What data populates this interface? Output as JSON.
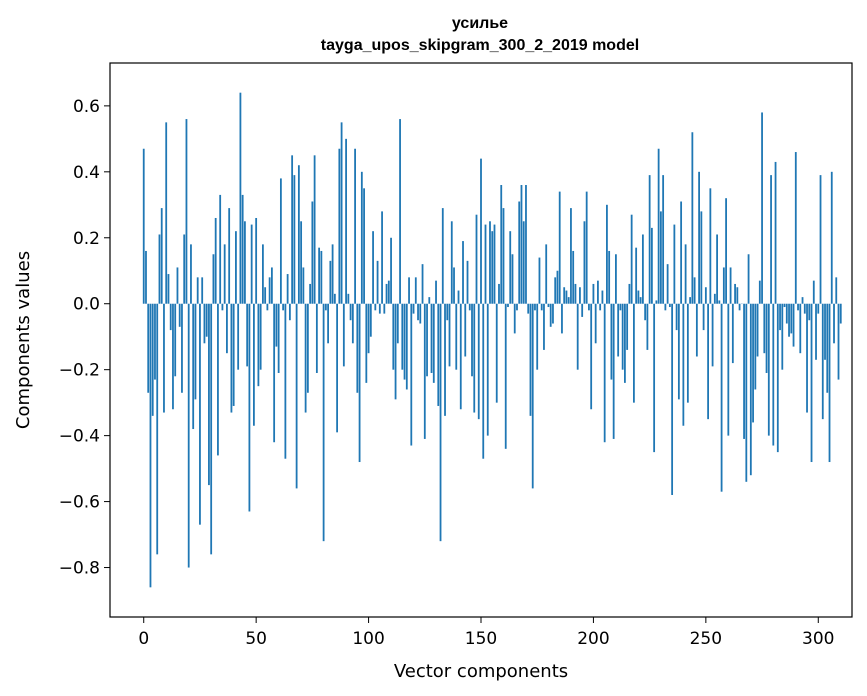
{
  "chart_data": {
    "type": "bar",
    "title": "усилье",
    "subtitle": "tayga_upos_skipgram_300_2_2019 model",
    "xlabel": "Vector components",
    "ylabel": "Components values",
    "xlim": [
      -15,
      315
    ],
    "ylim": [
      -0.95,
      0.73
    ],
    "xticks": [
      0,
      50,
      100,
      150,
      200,
      250,
      300
    ],
    "xtick_labels": [
      "0",
      "50",
      "100",
      "150",
      "200",
      "250",
      "300"
    ],
    "yticks": [
      -0.8,
      -0.6,
      -0.4,
      -0.2,
      0.0,
      0.2,
      0.4,
      0.6
    ],
    "ytick_labels": [
      "−0.8",
      "−0.6",
      "−0.4",
      "−0.2",
      "0.0",
      "0.2",
      "0.4",
      "0.6"
    ],
    "bar_color": "#1f77b4",
    "grid": false,
    "values": [
      0.47,
      0.16,
      -0.27,
      -0.86,
      -0.34,
      -0.23,
      -0.76,
      0.21,
      0.29,
      -0.33,
      0.55,
      0.09,
      -0.08,
      -0.32,
      -0.22,
      0.11,
      -0.07,
      -0.27,
      0.21,
      0.56,
      -0.8,
      0.18,
      -0.38,
      -0.29,
      0.08,
      -0.67,
      0.08,
      -0.12,
      -0.1,
      -0.55,
      -0.76,
      0.15,
      0.26,
      -0.46,
      0.33,
      -0.02,
      0.18,
      -0.15,
      0.29,
      -0.33,
      -0.31,
      0.22,
      -0.2,
      0.64,
      0.33,
      0.25,
      -0.19,
      -0.63,
      0.24,
      -0.37,
      0.26,
      -0.25,
      -0.2,
      0.18,
      0.05,
      -0.02,
      0.08,
      0.11,
      -0.42,
      -0.13,
      -0.21,
      0.38,
      -0.02,
      -0.47,
      0.09,
      -0.05,
      0.45,
      0.39,
      -0.56,
      0.42,
      0.25,
      0.11,
      -0.33,
      -0.27,
      0.06,
      0.31,
      0.45,
      -0.21,
      0.17,
      0.16,
      -0.72,
      -0.02,
      -0.12,
      0.13,
      0.18,
      0.03,
      -0.39,
      0.47,
      0.55,
      -0.19,
      0.5,
      0.03,
      -0.05,
      -0.12,
      0.47,
      -0.27,
      -0.48,
      0.4,
      0.35,
      -0.24,
      -0.15,
      -0.1,
      0.22,
      -0.02,
      0.13,
      -0.03,
      0.28,
      -0.03,
      0.06,
      0.07,
      0.2,
      -0.2,
      -0.29,
      -0.12,
      0.56,
      -0.2,
      -0.23,
      -0.26,
      0.08,
      -0.43,
      -0.03,
      0.08,
      -0.05,
      -0.06,
      0.12,
      -0.41,
      -0.22,
      0.02,
      -0.21,
      -0.24,
      0.07,
      -0.31,
      -0.72,
      0.29,
      -0.34,
      -0.05,
      -0.19,
      0.25,
      0.11,
      -0.2,
      0.04,
      -0.32,
      0.19,
      -0.16,
      0.13,
      -0.02,
      -0.22,
      -0.33,
      0.27,
      -0.35,
      0.44,
      -0.47,
      0.24,
      -0.4,
      0.25,
      0.22,
      0.24,
      -0.3,
      0.06,
      0.36,
      0.29,
      -0.44,
      -0.01,
      0.22,
      0.15,
      -0.09,
      -0.02,
      0.31,
      0.36,
      0.25,
      0.36,
      -0.03,
      -0.34,
      -0.56,
      -0.02,
      -0.2,
      0.14,
      -0.02,
      -0.14,
      0.18,
      -0.01,
      -0.07,
      -0.06,
      0.08,
      0.1,
      0.34,
      -0.09,
      0.05,
      0.04,
      0.02,
      0.29,
      0.16,
      0.06,
      -0.2,
      0.05,
      -0.04,
      0.25,
      0.34,
      -0.02,
      -0.32,
      0.06,
      -0.12,
      0.07,
      -0.02,
      0.04,
      -0.42,
      0.3,
      0.16,
      -0.23,
      -0.41,
      0.15,
      -0.16,
      -0.02,
      -0.2,
      -0.24,
      -0.14,
      0.06,
      0.27,
      -0.3,
      0.17,
      0.04,
      0.02,
      0.21,
      -0.05,
      -0.14,
      0.39,
      0.23,
      -0.45,
      0.01,
      0.47,
      0.28,
      0.39,
      -0.02,
      0.12,
      -0.01,
      -0.58,
      0.24,
      -0.08,
      -0.29,
      0.31,
      -0.37,
      0.18,
      -0.3,
      0.02,
      0.52,
      0.08,
      -0.16,
      0.4,
      0.28,
      -0.08,
      0.05,
      -0.35,
      0.35,
      -0.19,
      0.03,
      0.21,
      0.01,
      -0.57,
      0.11,
      0.32,
      -0.4,
      0.11,
      -0.18,
      0.06,
      0.05,
      -0.02,
      0.0,
      -0.41,
      -0.54,
      0.15,
      -0.52,
      -0.36,
      -0.26,
      -0.16,
      0.07,
      0.58,
      -0.15,
      -0.21,
      -0.4,
      0.39,
      -0.43,
      0.43,
      -0.45,
      -0.08,
      -0.2,
      -0.01,
      -0.06,
      -0.1,
      -0.09,
      -0.13,
      0.46,
      -0.02,
      -0.15,
      0.02,
      -0.03,
      -0.33,
      -0.05,
      -0.48,
      0.07,
      -0.17,
      -0.03,
      0.39,
      -0.35,
      -0.17,
      -0.27,
      -0.48,
      0.4,
      -0.12,
      0.08,
      -0.23,
      -0.06
    ]
  }
}
